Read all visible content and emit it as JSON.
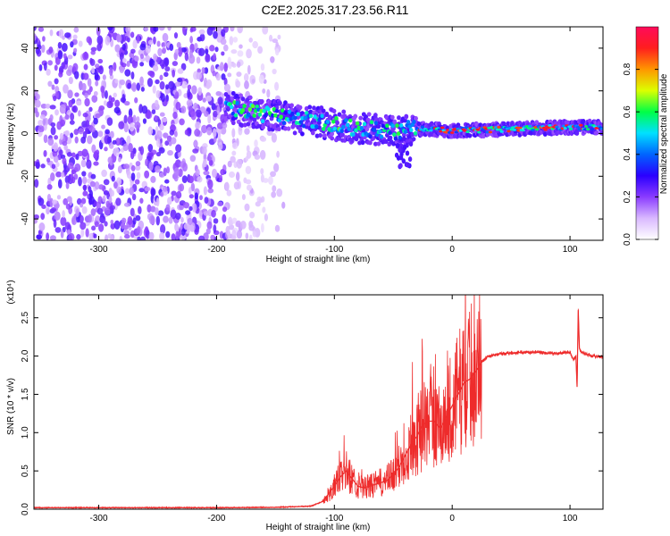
{
  "figure": {
    "title": "C2E2.2025.317.23.56.R11"
  },
  "chart_data": [
    {
      "type": "heatmap",
      "panel": "spectrogram",
      "xlabel": "Height of straight line (km)",
      "ylabel": "Frequency (Hz)",
      "xlim": [
        -355,
        128
      ],
      "ylim": [
        -50,
        50
      ],
      "xticks": [
        -300,
        -200,
        -100,
        0,
        100
      ],
      "yticks": [
        -40,
        -20,
        0,
        20,
        40
      ],
      "noise_region": {
        "x_from": -355,
        "x_to": -192,
        "dense_until": -192,
        "sparse_until": -140
      },
      "ridge": {
        "x": [
          -192,
          -180,
          -160,
          -140,
          -120,
          -100,
          -80,
          -60,
          -45,
          -35,
          -28,
          0,
          50,
          100,
          128
        ],
        "y": [
          13,
          11,
          9,
          7.5,
          6,
          4,
          2.5,
          1.5,
          0.5,
          2.5,
          2,
          1.5,
          2,
          3,
          3
        ]
      },
      "colorbar": {
        "label": "Normalized spectral amplitude",
        "ticks": [
          0.0,
          0.2,
          0.4,
          0.6,
          0.8
        ],
        "range": [
          0,
          1
        ],
        "colors": [
          "#ffffff",
          "#d9b8ff",
          "#8a3bff",
          "#2a00ff",
          "#0064ff",
          "#00e1ff",
          "#00ff46",
          "#dcff00",
          "#ff9600",
          "#ff1e1e",
          "#ff0a5a"
        ]
      }
    },
    {
      "type": "line",
      "panel": "snr",
      "xlabel": "Height of straight line (km)",
      "ylabel": "SNR (10 * v/v)",
      "scale_label": "(x10⁴)",
      "xlim": [
        -355,
        128
      ],
      "ylim": [
        0,
        2.8
      ],
      "xticks": [
        -300,
        -200,
        -100,
        0,
        100
      ],
      "yticks": [
        0.0,
        0.5,
        1.0,
        1.5,
        2.0,
        2.5
      ],
      "color": "#ee2b2b",
      "series": [
        {
          "name": "SNR",
          "x": [
            -355,
            -300,
            -200,
            -150,
            -120,
            -110,
            -100,
            -95,
            -90,
            -85,
            -80,
            -75,
            -70,
            -60,
            -55,
            -50,
            -45,
            -40,
            -35,
            -30,
            -25,
            -20,
            -15,
            -10,
            -5,
            0,
            5,
            10,
            15,
            20,
            25,
            30,
            40,
            50,
            60,
            70,
            80,
            90,
            95,
            100,
            103,
            105,
            106,
            107,
            108,
            110,
            115,
            120,
            128
          ],
          "y": [
            0.02,
            0.02,
            0.02,
            0.025,
            0.04,
            0.1,
            0.3,
            0.42,
            0.5,
            0.4,
            0.3,
            0.28,
            0.3,
            0.35,
            0.38,
            0.45,
            0.55,
            0.7,
            0.85,
            0.95,
            1.1,
            1.15,
            1.15,
            1.05,
            1.2,
            1.35,
            1.5,
            1.65,
            1.7,
            1.8,
            1.92,
            2.0,
            2.03,
            2.04,
            2.05,
            2.05,
            2.04,
            2.03,
            2.05,
            2.05,
            1.95,
            2.0,
            1.6,
            2.6,
            2.1,
            2.05,
            2.02,
            2.0,
            1.99
          ]
        }
      ]
    }
  ]
}
